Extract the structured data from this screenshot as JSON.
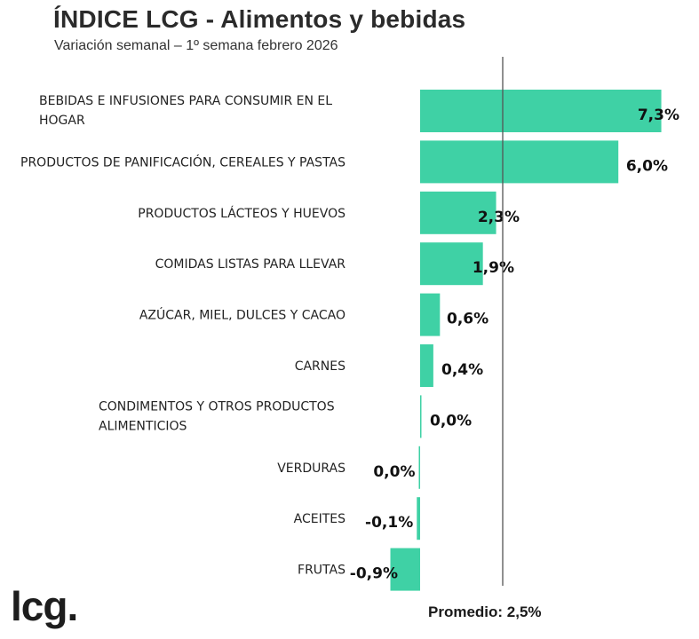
{
  "chart_data": {
    "type": "bar",
    "orientation": "horizontal",
    "title": "ÍNDICE LCG - Alimentos y bebidas",
    "subtitle": "Variación semanal – 1º semana febrero 2026",
    "categories": [
      "BEBIDAS E INFUSIONES PARA CONSUMIR EN EL HOGAR",
      "PRODUCTOS DE PANIFICACIÓN, CEREALES Y PASTAS",
      "PRODUCTOS LÁCTEOS Y HUEVOS",
      "COMIDAS LISTAS PARA LLEVAR",
      "AZÚCAR, MIEL, DULCES Y CACAO",
      "CARNES",
      "CONDIMENTOS Y OTROS PRODUCTOS ALIMENTICIOS",
      "VERDURAS",
      "ACEITES",
      "FRUTAS"
    ],
    "category_lines": [
      [
        "BEBIDAS E INFUSIONES PARA CONSUMIR EN EL",
        "HOGAR"
      ],
      [
        "PRODUCTOS DE PANIFICACIÓN, CEREALES Y PASTAS"
      ],
      [
        "PRODUCTOS LÁCTEOS Y HUEVOS"
      ],
      [
        "COMIDAS LISTAS PARA LLEVAR"
      ],
      [
        "AZÚCAR, MIEL, DULCES Y CACAO"
      ],
      [
        "CARNES"
      ],
      [
        "CONDIMENTOS Y OTROS PRODUCTOS",
        "ALIMENTICIOS"
      ],
      [
        "VERDURAS"
      ],
      [
        "ACEITES"
      ],
      [
        "FRUTAS"
      ]
    ],
    "values": [
      7.3,
      6.0,
      2.3,
      1.9,
      0.6,
      0.4,
      0.0,
      -0.04,
      -0.1,
      -0.9
    ],
    "value_labels": [
      "7,3%",
      "6,0%",
      "2,3%",
      "1,9%",
      "0,6%",
      "0,4%",
      "0,0%",
      "0,0%",
      "-0,1%",
      "-0,9%"
    ],
    "average": 2.5,
    "average_label": "Promedio: 2,5%",
    "xlim": [
      -1.0,
      7.5
    ],
    "grid": false,
    "legend": "none",
    "bar_color": "#3fd1a5",
    "average_line_color": "#555555"
  },
  "brand": {
    "logo_text": "lcg."
  }
}
